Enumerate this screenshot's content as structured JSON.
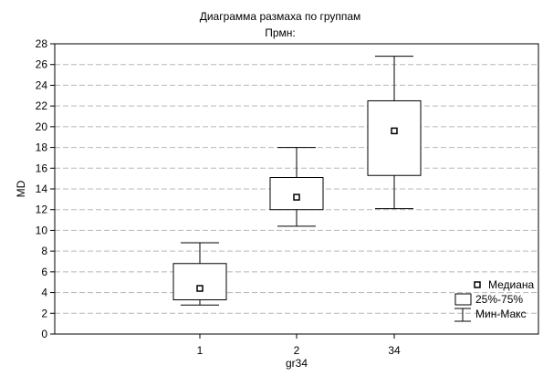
{
  "chart_data": {
    "type": "boxplot",
    "title": "Диаграмма размаха по группам",
    "subtitle": "Прмн:",
    "xlabel": "gr34",
    "ylabel": "MD",
    "ylim": [
      0,
      28
    ],
    "yticks": [
      "0",
      "2",
      "4",
      "6",
      "8",
      "10",
      "12",
      "14",
      "16",
      "18",
      "20",
      "22",
      "24",
      "26",
      "28"
    ],
    "grid": true,
    "legend_position": "bottom-right",
    "categories": [
      "1",
      "2",
      "34"
    ],
    "groups": [
      {
        "category": "1",
        "median": 4.4,
        "q1": 3.3,
        "q3": 6.8,
        "min": 2.8,
        "max": 8.8
      },
      {
        "category": "2",
        "median": 13.2,
        "q1": 12.0,
        "q3": 15.1,
        "min": 10.4,
        "max": 18.0
      },
      {
        "category": "34",
        "median": 19.6,
        "q1": 15.3,
        "q3": 22.5,
        "min": 12.1,
        "max": 26.8
      }
    ],
    "legend": {
      "median_label": "Медиана",
      "box_label": "25%-75%",
      "whisker_label": "Мин-Макс"
    }
  }
}
